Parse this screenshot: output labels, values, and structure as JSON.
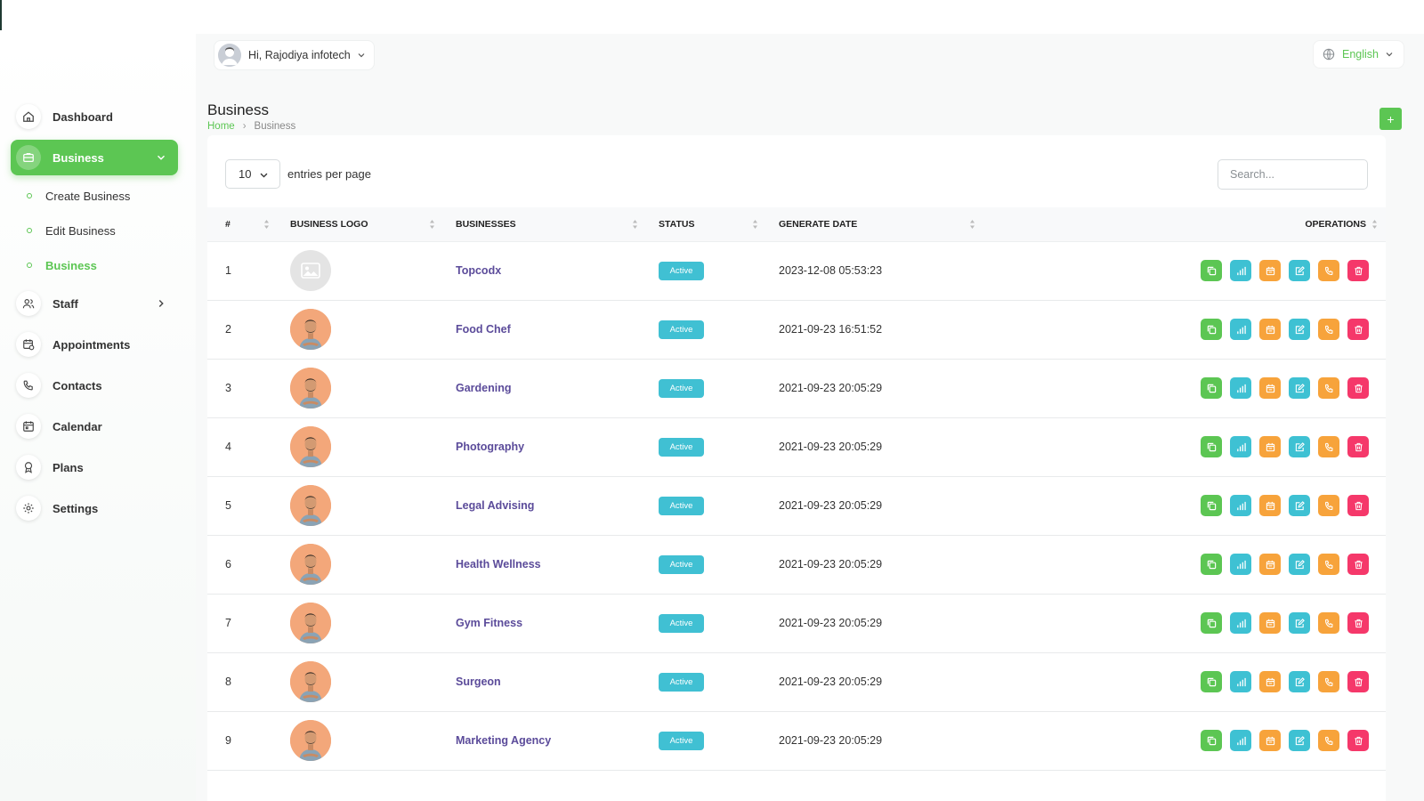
{
  "header": {
    "greeting": "Hi, Rajodiya infotech",
    "language": "English"
  },
  "sidebar": {
    "items": [
      {
        "label": "Dashboard",
        "icon": "home-icon"
      },
      {
        "label": "Business",
        "icon": "briefcase-icon",
        "active": true
      },
      {
        "label": "Staff",
        "icon": "users-icon"
      },
      {
        "label": "Appointments",
        "icon": "calendar-clock-icon"
      },
      {
        "label": "Contacts",
        "icon": "phone-icon"
      },
      {
        "label": "Calendar",
        "icon": "calendar-icon"
      },
      {
        "label": "Plans",
        "icon": "award-icon"
      },
      {
        "label": "Settings",
        "icon": "gear-icon"
      }
    ],
    "business_sub": [
      {
        "label": "Create Business"
      },
      {
        "label": "Edit Business"
      },
      {
        "label": "Business",
        "current": true
      }
    ]
  },
  "page": {
    "title": "Business",
    "breadcrumb_home": "Home",
    "breadcrumb_current": "Business",
    "add_label": "+"
  },
  "table_controls": {
    "per_page": "10",
    "entries_label": "entries per page",
    "search_placeholder": "Search..."
  },
  "table": {
    "columns": [
      "#",
      "BUSINESS LOGO",
      "BUSINESSES",
      "STATUS",
      "GENERATE DATE",
      "OPERATIONS"
    ],
    "rows": [
      {
        "num": "1",
        "name": "Topcodx",
        "status": "Active",
        "date": "2023-12-08 05:53:23",
        "logo": "placeholder"
      },
      {
        "num": "2",
        "name": "Food Chef",
        "status": "Active",
        "date": "2021-09-23 16:51:52",
        "logo": "avatar"
      },
      {
        "num": "3",
        "name": "Gardening",
        "status": "Active",
        "date": "2021-09-23 20:05:29",
        "logo": "avatar"
      },
      {
        "num": "4",
        "name": "Photography",
        "status": "Active",
        "date": "2021-09-23 20:05:29",
        "logo": "avatar"
      },
      {
        "num": "5",
        "name": "Legal Advising",
        "status": "Active",
        "date": "2021-09-23 20:05:29",
        "logo": "avatar"
      },
      {
        "num": "6",
        "name": "Health Wellness",
        "status": "Active",
        "date": "2021-09-23 20:05:29",
        "logo": "avatar"
      },
      {
        "num": "7",
        "name": "Gym Fitness",
        "status": "Active",
        "date": "2021-09-23 20:05:29",
        "logo": "avatar"
      },
      {
        "num": "8",
        "name": "Surgeon",
        "status": "Active",
        "date": "2021-09-23 20:05:29",
        "logo": "avatar"
      },
      {
        "num": "9",
        "name": "Marketing Agency",
        "status": "Active",
        "date": "2021-09-23 20:05:29",
        "logo": "avatar"
      }
    ],
    "operations": [
      {
        "name": "copy-button",
        "icon": "copy-icon",
        "color": "#5cc653"
      },
      {
        "name": "analytics-button",
        "icon": "bar-chart-icon",
        "color": "#3ec1d3"
      },
      {
        "name": "appointments-button",
        "icon": "calendar-icon",
        "color": "#f7a33b"
      },
      {
        "name": "edit-button",
        "icon": "edit-icon",
        "color": "#3ec1d3"
      },
      {
        "name": "contacts-button",
        "icon": "phone-icon",
        "color": "#f7a33b"
      },
      {
        "name": "delete-button",
        "icon": "trash-icon",
        "color": "#f5386a"
      }
    ]
  },
  "colors": {
    "accent": "#5cc653",
    "status_active": "#40c0d3",
    "link": "#5b4b9a"
  }
}
